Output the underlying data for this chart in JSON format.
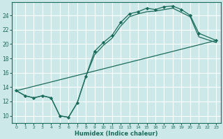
{
  "xlabel": "Humidex (Indice chaleur)",
  "bg_color": "#cce8e8",
  "grid_color": "#ffffff",
  "line_color": "#1a6b5a",
  "xlim": [
    -0.5,
    23.5
  ],
  "ylim": [
    9.0,
    25.8
  ],
  "xticks": [
    0,
    1,
    2,
    3,
    4,
    5,
    6,
    7,
    8,
    9,
    10,
    11,
    12,
    13,
    14,
    15,
    16,
    17,
    18,
    19,
    20,
    21,
    22,
    23
  ],
  "yticks": [
    10,
    12,
    14,
    16,
    18,
    20,
    22,
    24
  ],
  "line_with_markers_x": [
    0,
    1,
    2,
    3,
    4,
    5,
    6,
    7,
    8,
    9,
    10,
    11,
    12,
    13,
    14,
    15,
    16,
    17,
    18,
    19,
    20,
    21,
    23
  ],
  "line_with_markers_y": [
    13.5,
    12.8,
    12.5,
    12.8,
    12.5,
    10.0,
    9.8,
    11.8,
    15.5,
    19.0,
    20.2,
    21.2,
    23.0,
    24.2,
    24.5,
    25.0,
    24.8,
    25.2,
    25.3,
    24.8,
    24.0,
    21.5,
    20.5
  ],
  "line2_x": [
    0,
    1,
    2,
    3,
    4,
    5,
    6,
    7,
    8,
    9,
    10,
    11,
    12,
    13,
    14,
    15,
    16,
    17,
    18,
    19,
    20,
    21,
    23
  ],
  "line2_y": [
    13.5,
    12.8,
    12.5,
    12.8,
    12.5,
    10.0,
    9.8,
    11.8,
    15.5,
    18.5,
    19.8,
    20.8,
    22.5,
    23.8,
    24.2,
    24.5,
    24.6,
    24.8,
    25.0,
    24.4,
    23.8,
    21.0,
    20.2
  ],
  "trend_x": [
    0,
    23
  ],
  "trend_y": [
    13.5,
    20.5
  ]
}
